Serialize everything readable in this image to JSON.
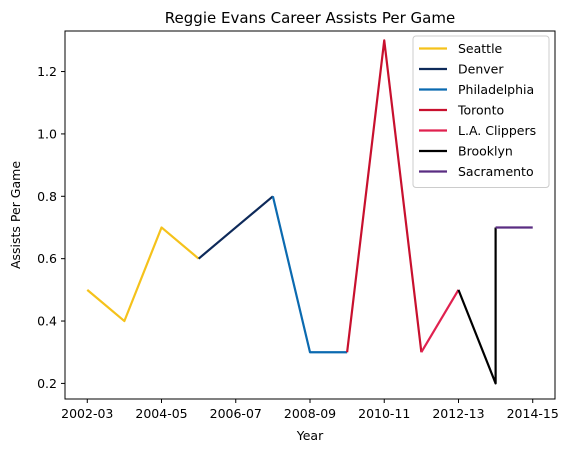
{
  "chart_data": {
    "type": "line",
    "title": "Reggie Evans Career Assists Per Game",
    "xlabel": "Year",
    "ylabel": "Assists Per Game",
    "x_ticks": [
      "2002-03",
      "2004-05",
      "2006-07",
      "2008-09",
      "2010-11",
      "2012-13",
      "2014-15"
    ],
    "y_ticks": [
      "0.2",
      "0.4",
      "0.6",
      "0.8",
      "1.0",
      "1.2"
    ],
    "xlim": [
      "2002-03",
      "2014-15"
    ],
    "ylim": [
      0.15,
      1.33
    ],
    "grid": false,
    "legend_position": "top-right",
    "series": [
      {
        "name": "Seattle",
        "color": "#f5c21b",
        "points": [
          {
            "x": 2002,
            "y": 0.5
          },
          {
            "x": 2003,
            "y": 0.4
          },
          {
            "x": 2004,
            "y": 0.7
          },
          {
            "x": 2005,
            "y": 0.6
          }
        ]
      },
      {
        "name": "Denver",
        "color": "#0e2a5a",
        "points": [
          {
            "x": 2005,
            "y": 0.6
          },
          {
            "x": 2006,
            "y": 0.7
          },
          {
            "x": 2007,
            "y": 0.8
          }
        ]
      },
      {
        "name": "Philadelphia",
        "color": "#0b6ab0",
        "points": [
          {
            "x": 2007,
            "y": 0.8
          },
          {
            "x": 2008,
            "y": 0.3
          },
          {
            "x": 2009,
            "y": 0.3
          }
        ]
      },
      {
        "name": "Toronto",
        "color": "#c8102e",
        "points": [
          {
            "x": 2009,
            "y": 0.3
          },
          {
            "x": 2010,
            "y": 1.3
          },
          {
            "x": 2011,
            "y": 0.3
          }
        ]
      },
      {
        "name": "L.A. Clippers",
        "color": "#e0214f",
        "points": [
          {
            "x": 2011,
            "y": 0.3
          },
          {
            "x": 2012,
            "y": 0.5
          }
        ]
      },
      {
        "name": "Brooklyn",
        "color": "#000000",
        "points": [
          {
            "x": 2012,
            "y": 0.5
          },
          {
            "x": 2013,
            "y": 0.2
          },
          {
            "x": 2013,
            "y": 0.7
          }
        ]
      },
      {
        "name": "Sacramento",
        "color": "#5a2d82",
        "points": [
          {
            "x": 2013,
            "y": 0.7
          },
          {
            "x": 2014,
            "y": 0.7
          }
        ]
      }
    ]
  }
}
